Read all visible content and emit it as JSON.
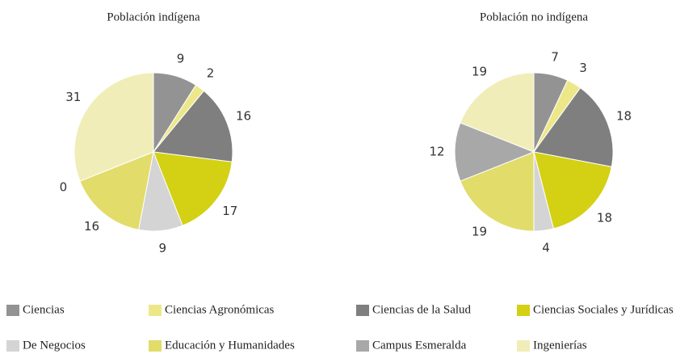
{
  "chart_data": [
    {
      "type": "pie",
      "title": "Población indígena",
      "categories": [
        "Ciencias",
        "Ciencias Agronómicas",
        "Ciencias de la Salud",
        "Ciencias Sociales y Jurídicas",
        "De Negocios",
        "Educación y Humanidades",
        "Campus Esmeralda",
        "Ingenierías"
      ],
      "values": [
        9,
        2,
        16,
        17,
        9,
        16,
        0,
        31
      ],
      "colors": [
        "#939393",
        "#ece88a",
        "#7f7f7f",
        "#d4d014",
        "#d4d4d4",
        "#e2dc6a",
        "#a8a8a8",
        "#f0edb8"
      ]
    },
    {
      "type": "pie",
      "title": "Población no indígena",
      "categories": [
        "Ciencias",
        "Ciencias Agronómicas",
        "Ciencias de la Salud",
        "Ciencias Sociales y Jurídicas",
        "De Negocios",
        "Educación y Humanidades",
        "Campus Esmeralda",
        "Ingenierías"
      ],
      "values": [
        7,
        3,
        18,
        18,
        4,
        19,
        12,
        19
      ],
      "colors": [
        "#939393",
        "#ece88a",
        "#7f7f7f",
        "#d4d014",
        "#d4d4d4",
        "#e2dc6a",
        "#a8a8a8",
        "#f0edb8"
      ]
    }
  ]
}
